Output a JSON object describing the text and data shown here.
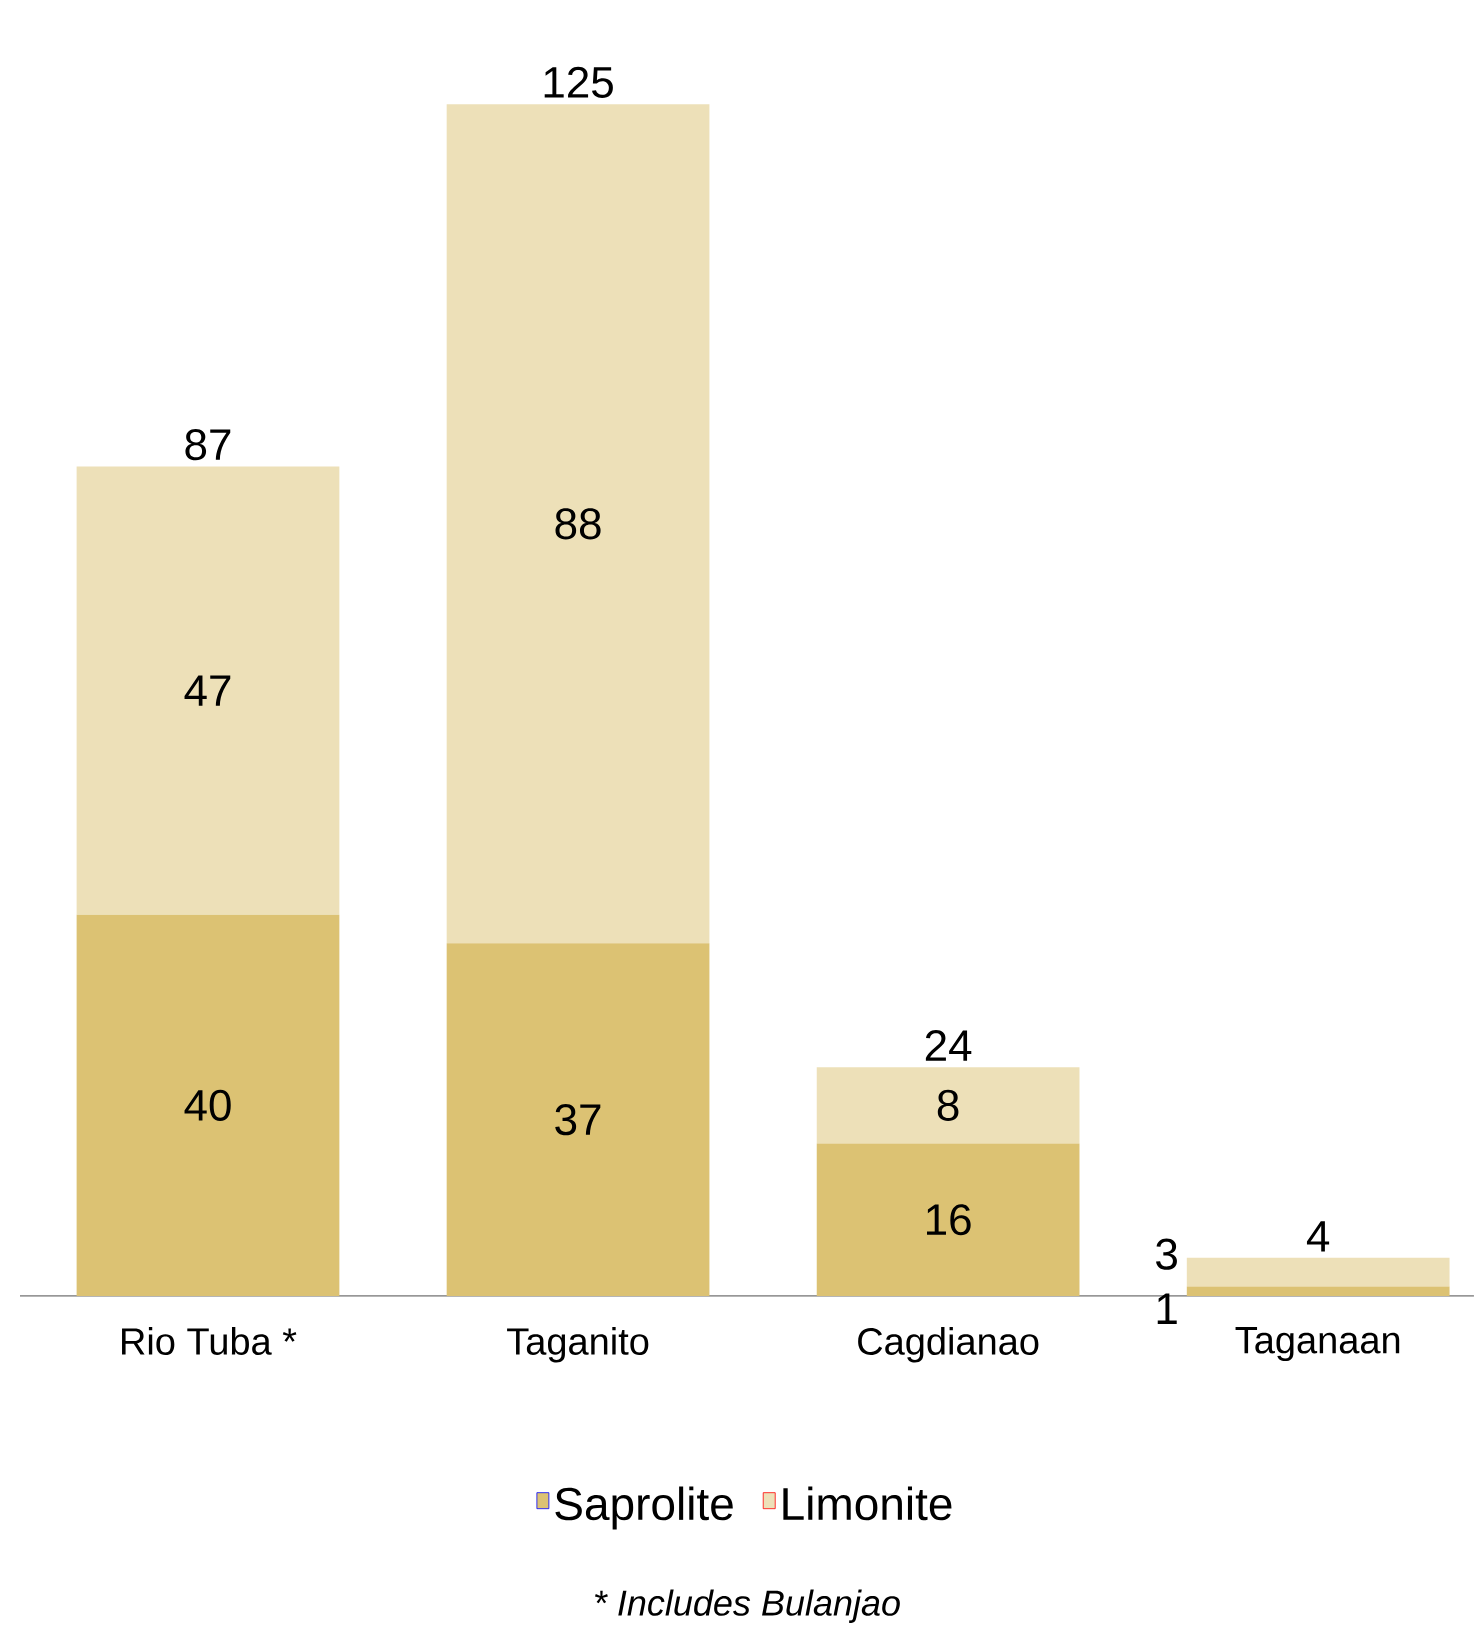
{
  "chart_data": {
    "type": "bar",
    "stacked": true,
    "data_labels": true,
    "legend": "bottom",
    "categories": [
      "Rio Tuba *",
      "Taganito",
      "Cagdianao",
      "Taganaan"
    ],
    "series": [
      {
        "name": "Saprolite",
        "color": "#dcc273",
        "values": [
          40,
          37,
          16,
          1
        ]
      },
      {
        "name": "Limonite",
        "color": "#ede0b8",
        "values": [
          47,
          88,
          8,
          3
        ]
      }
    ],
    "totals": [
      "87",
      "125",
      "24",
      "4"
    ],
    "annotations": [
      "* Includes Bulanjao"
    ]
  }
}
